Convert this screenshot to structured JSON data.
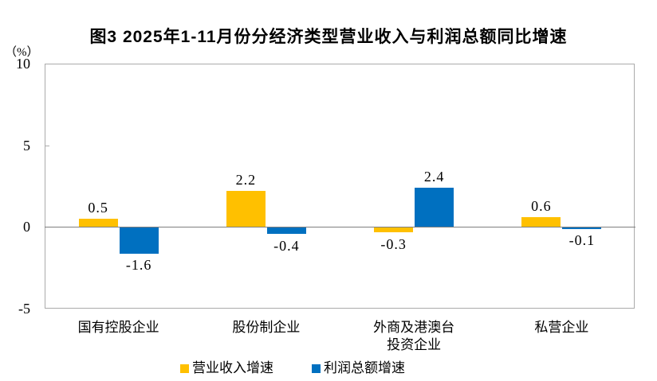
{
  "figure": {
    "title": "图3  2025年1-11月份分经济类型营业收入与利润总额同比增速",
    "unit_label": "（%）"
  },
  "chart_data": {
    "type": "bar",
    "title": "图3  2025年1-11月份分经济类型营业收入与利润总额同比增速",
    "unit": "%",
    "categories": [
      "国有控股企业",
      "股份制企业",
      "外商及港澳台\n投资企业",
      "私营企业"
    ],
    "series": [
      {
        "name": "营业收入增速",
        "key": "revenue-growth",
        "color": "#FFC000",
        "values": [
          0.5,
          2.2,
          -0.3,
          0.6
        ]
      },
      {
        "name": "利润总额增速",
        "key": "profit-growth",
        "color": "#0070C0",
        "values": [
          -1.6,
          -0.4,
          2.4,
          -0.1
        ]
      }
    ],
    "ylim": [
      -5,
      10
    ],
    "yticks": [
      10,
      5,
      0,
      -5
    ],
    "grid": false,
    "legend_position": "bottom",
    "bar_value_labels": true
  }
}
